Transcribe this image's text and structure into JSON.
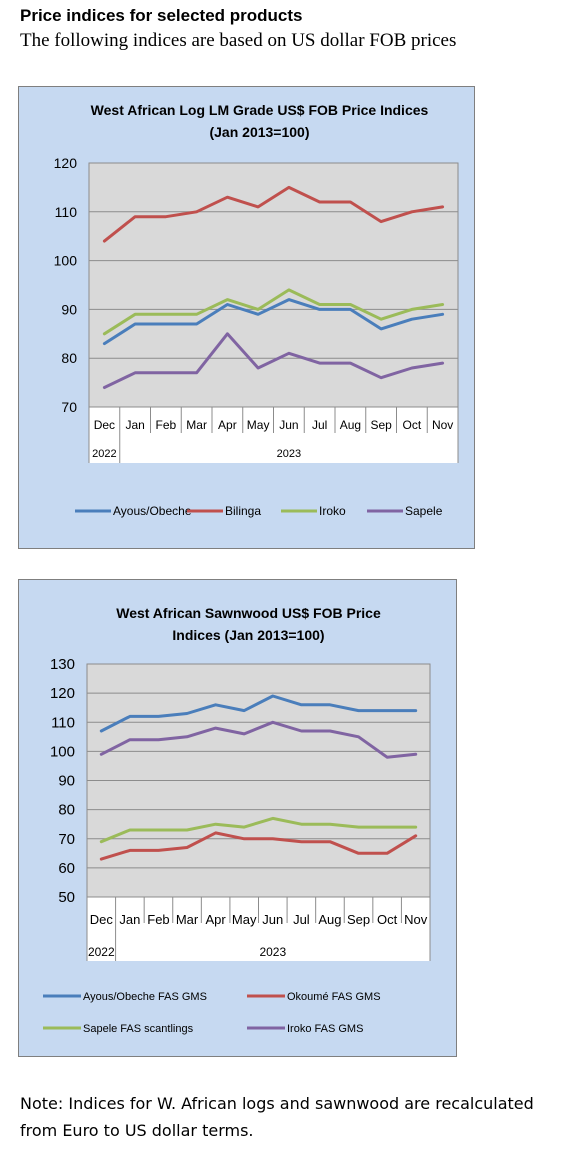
{
  "page": {
    "heading": "Price indices for selected products",
    "subheading": "The following indices are based on US dollar FOB prices",
    "note": "Note: Indices for W. African logs and sawnwood are recalculated from Euro to US dollar terms."
  },
  "chart_data": [
    {
      "type": "line",
      "title": "West African Log LM Grade US$ FOB Price Indices",
      "subtitle": "(Jan 2013=100)",
      "categories": [
        "Dec",
        "Jan",
        "Feb",
        "Mar",
        "Apr",
        "May",
        "Jun",
        "Jul",
        "Aug",
        "Sep",
        "Oct",
        "Nov"
      ],
      "year_labels": [
        {
          "label": "2022",
          "index": 0
        },
        {
          "label": "2023",
          "index": 6
        }
      ],
      "ylim": [
        70,
        120
      ],
      "yticks": [
        70,
        80,
        90,
        100,
        110,
        120
      ],
      "grid": true,
      "legend_position": "bottom",
      "series": [
        {
          "name": "Ayous/Obeche",
          "color": "#4a7ebb",
          "values": [
            83,
            87,
            87,
            87,
            91,
            89,
            92,
            90,
            90,
            86,
            88,
            89
          ]
        },
        {
          "name": "Bilinga",
          "color": "#c0504d",
          "values": [
            104,
            109,
            109,
            110,
            113,
            111,
            115,
            112,
            112,
            108,
            110,
            111
          ]
        },
        {
          "name": "Iroko",
          "color": "#9bbb59",
          "values": [
            85,
            89,
            89,
            89,
            92,
            90,
            94,
            91,
            91,
            88,
            90,
            91
          ]
        },
        {
          "name": "Sapele",
          "color": "#8064a2",
          "values": [
            74,
            77,
            77,
            77,
            85,
            78,
            81,
            79,
            79,
            76,
            78,
            79
          ]
        }
      ]
    },
    {
      "type": "line",
      "title": "West African Sawnwood US$ FOB Price",
      "subtitle": "Indices (Jan 2013=100)",
      "categories": [
        "Dec",
        "Jan",
        "Feb",
        "Mar",
        "Apr",
        "May",
        "Jun",
        "Jul",
        "Aug",
        "Sep",
        "Oct",
        "Nov"
      ],
      "year_labels": [
        {
          "label": "2022",
          "index": 0
        },
        {
          "label": "2023",
          "index": 6
        }
      ],
      "ylim": [
        50,
        130
      ],
      "yticks": [
        50,
        60,
        70,
        80,
        90,
        100,
        110,
        120,
        130
      ],
      "grid": true,
      "legend_position": "bottom",
      "series": [
        {
          "name": "Ayous/Obeche  FAS GMS",
          "color": "#4a7ebb",
          "values": [
            107,
            112,
            112,
            113,
            116,
            114,
            119,
            116,
            116,
            114,
            114,
            114
          ]
        },
        {
          "name": "Okoumé  FAS GMS",
          "color": "#c0504d",
          "values": [
            63,
            66,
            66,
            67,
            72,
            70,
            70,
            69,
            69,
            65,
            65,
            71
          ]
        },
        {
          "name": "Sapele FAS scantlings",
          "color": "#9bbb59",
          "values": [
            69,
            73,
            73,
            73,
            75,
            74,
            77,
            75,
            75,
            74,
            74,
            74
          ]
        },
        {
          "name": "Iroko FAS GMS",
          "color": "#8064a2",
          "values": [
            99,
            104,
            104,
            105,
            108,
            106,
            110,
            107,
            107,
            105,
            98,
            99
          ]
        }
      ]
    }
  ]
}
